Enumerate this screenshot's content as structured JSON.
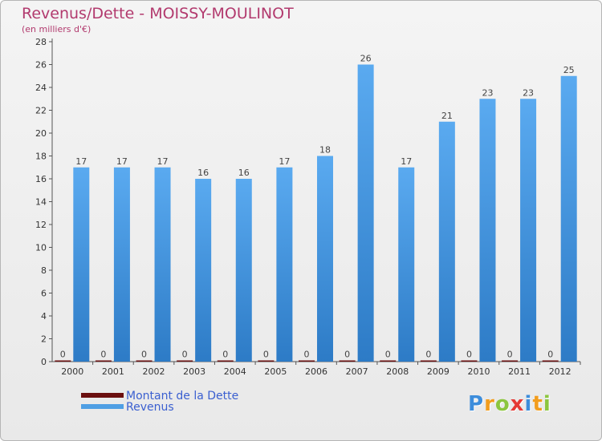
{
  "chart_data": {
    "type": "bar",
    "title": "Revenus/Dette - MOISSY-MOULINOT",
    "subtitle": "(en milliers d'€)",
    "categories": [
      "2000",
      "2001",
      "2002",
      "2003",
      "2004",
      "2005",
      "2006",
      "2007",
      "2008",
      "2009",
      "2010",
      "2011",
      "2012"
    ],
    "series": [
      {
        "name": "Montant de la Dette",
        "color": "#6b0f0f",
        "values": [
          0,
          0,
          0,
          0,
          0,
          0,
          0,
          0,
          0,
          0,
          0,
          0,
          0
        ]
      },
      {
        "name": "Revenus",
        "color": "#4f9fe4",
        "values": [
          17,
          17,
          17,
          16,
          16,
          17,
          18,
          26,
          17,
          21,
          23,
          23,
          25
        ]
      }
    ],
    "ylim": [
      0,
      28
    ],
    "yticks": [
      0,
      2,
      4,
      6,
      8,
      10,
      12,
      14,
      16,
      18,
      20,
      22,
      24,
      26,
      28
    ],
    "xlabel": "",
    "ylabel": "",
    "grid": false,
    "legend_position": "bottom-left"
  },
  "logo": {
    "letters": [
      "P",
      "r",
      "o",
      "x",
      "i",
      "t",
      "i"
    ],
    "colors": [
      "#3d8ddb",
      "#f29d1e",
      "#8cc63f",
      "#e53935",
      "#3d8ddb",
      "#f29d1e",
      "#8cc63f"
    ]
  }
}
